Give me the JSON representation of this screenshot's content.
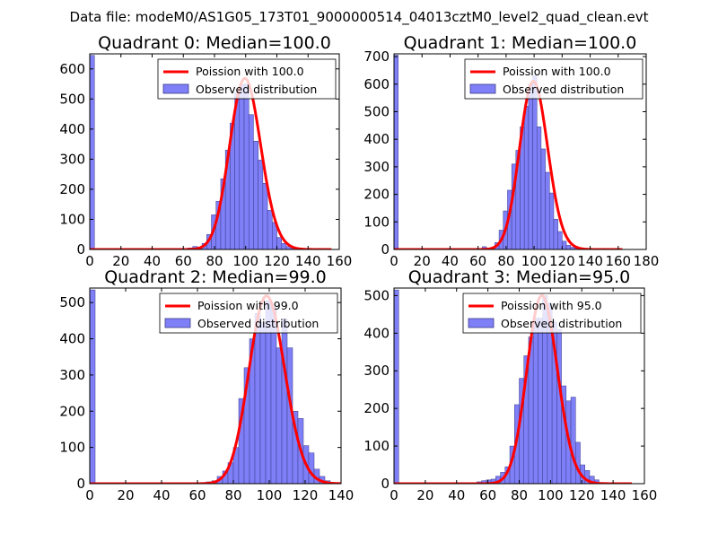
{
  "figure_title": "Data file: modeM0/AS1G05_173T01_9000000514_04013cztM0_level2_quad_clean.evt",
  "colors": {
    "bar_fill": "#7f7ff7",
    "bar_edge": "#3b3b8a",
    "fit_line": "#ff0000",
    "axes": "#000000"
  },
  "chart_data": [
    {
      "type": "bar",
      "title": "Quadrant 0: Median=100.0",
      "xlim": [
        0,
        160
      ],
      "ylim": [
        0,
        650
      ],
      "xticks": [
        0,
        20,
        40,
        60,
        80,
        100,
        120,
        140,
        160
      ],
      "yticks": [
        0,
        100,
        200,
        300,
        400,
        500,
        600
      ],
      "legend": {
        "position": "top-right",
        "line_label": "Poission with 100.0",
        "bar_label": "Observed distribution"
      },
      "fit": {
        "mu": 100.0,
        "x_range": [
          0,
          155
        ],
        "peak": 568
      },
      "bar_width": 3,
      "bars": [
        [
          0,
          645
        ],
        [
          63,
          5
        ],
        [
          66,
          10
        ],
        [
          69,
          8
        ],
        [
          72,
          20
        ],
        [
          75,
          50
        ],
        [
          78,
          115
        ],
        [
          81,
          160
        ],
        [
          84,
          235
        ],
        [
          87,
          330
        ],
        [
          90,
          420
        ],
        [
          93,
          520
        ],
        [
          96,
          548
        ],
        [
          99,
          550
        ],
        [
          102,
          448
        ],
        [
          105,
          360
        ],
        [
          108,
          297
        ],
        [
          111,
          220
        ],
        [
          114,
          130
        ],
        [
          117,
          90
        ],
        [
          120,
          40
        ],
        [
          123,
          20
        ],
        [
          126,
          10
        ],
        [
          129,
          5
        ]
      ]
    },
    {
      "type": "bar",
      "title": "Quadrant 1: Median=100.0",
      "xlim": [
        0,
        180
      ],
      "ylim": [
        0,
        710
      ],
      "xticks": [
        0,
        20,
        40,
        60,
        80,
        100,
        120,
        140,
        160,
        180
      ],
      "yticks": [
        0,
        100,
        200,
        300,
        400,
        500,
        600,
        700
      ],
      "legend": {
        "position": "top-right",
        "line_label": "Poission with 100.0",
        "bar_label": "Observed distribution"
      },
      "fit": {
        "mu": 100.0,
        "x_range": [
          0,
          163
        ],
        "peak": 610
      },
      "bar_width": 3,
      "bars": [
        [
          0,
          705
        ],
        [
          63,
          10
        ],
        [
          69,
          5
        ],
        [
          72,
          25
        ],
        [
          75,
          70
        ],
        [
          78,
          140
        ],
        [
          81,
          215
        ],
        [
          84,
          310
        ],
        [
          87,
          360
        ],
        [
          90,
          445
        ],
        [
          93,
          520
        ],
        [
          96,
          600
        ],
        [
          99,
          630
        ],
        [
          102,
          445
        ],
        [
          105,
          365
        ],
        [
          108,
          280
        ],
        [
          111,
          205
        ],
        [
          114,
          110
        ],
        [
          117,
          65
        ],
        [
          120,
          30
        ],
        [
          123,
          15
        ],
        [
          126,
          8
        ],
        [
          129,
          5
        ]
      ]
    },
    {
      "type": "bar",
      "title": "Quadrant 2: Median=99.0",
      "xlim": [
        0,
        140
      ],
      "ylim": [
        0,
        540
      ],
      "xticks": [
        0,
        20,
        40,
        60,
        80,
        100,
        120,
        140
      ],
      "yticks": [
        0,
        100,
        200,
        300,
        400,
        500
      ],
      "legend": {
        "position": "top-right",
        "line_label": "Poission with 99.0",
        "bar_label": "Observed distribution"
      },
      "fit": {
        "mu": 99.0,
        "x_range": [
          0,
          140
        ],
        "peak": 518
      },
      "bar_width": 3,
      "bars": [
        [
          0,
          535
        ],
        [
          65,
          5
        ],
        [
          68,
          8
        ],
        [
          71,
          20
        ],
        [
          74,
          35
        ],
        [
          77,
          58
        ],
        [
          80,
          100
        ],
        [
          83,
          235
        ],
        [
          86,
          320
        ],
        [
          89,
          400
        ],
        [
          92,
          470
        ],
        [
          95,
          445
        ],
        [
          98,
          505
        ],
        [
          101,
          490
        ],
        [
          104,
          375
        ],
        [
          107,
          455
        ],
        [
          110,
          375
        ],
        [
          113,
          200
        ],
        [
          116,
          180
        ],
        [
          119,
          105
        ],
        [
          122,
          85
        ],
        [
          125,
          40
        ],
        [
          128,
          20
        ],
        [
          131,
          8
        ]
      ]
    },
    {
      "type": "bar",
      "title": "Quadrant 3: Median=95.0",
      "xlim": [
        0,
        160
      ],
      "ylim": [
        0,
        520
      ],
      "xticks": [
        0,
        20,
        40,
        60,
        80,
        100,
        120,
        140,
        160
      ],
      "yticks": [
        0,
        100,
        200,
        300,
        400,
        500
      ],
      "legend": {
        "position": "top-right",
        "line_label": "Poission with 95.0",
        "bar_label": "Observed distribution"
      },
      "fit": {
        "mu": 95.0,
        "x_range": [
          0,
          152
        ],
        "peak": 500
      },
      "bar_width": 3,
      "bars": [
        [
          0,
          515
        ],
        [
          50,
          3
        ],
        [
          53,
          5
        ],
        [
          56,
          8
        ],
        [
          59,
          10
        ],
        [
          62,
          12
        ],
        [
          65,
          20
        ],
        [
          68,
          30
        ],
        [
          71,
          45
        ],
        [
          74,
          100
        ],
        [
          77,
          210
        ],
        [
          80,
          280
        ],
        [
          83,
          340
        ],
        [
          86,
          390
        ],
        [
          89,
          440
        ],
        [
          92,
          440
        ],
        [
          95,
          500
        ],
        [
          98,
          480
        ],
        [
          101,
          430
        ],
        [
          104,
          410
        ],
        [
          107,
          260
        ],
        [
          110,
          220
        ],
        [
          113,
          230
        ],
        [
          116,
          110
        ],
        [
          119,
          50
        ],
        [
          122,
          35
        ],
        [
          125,
          20
        ],
        [
          128,
          10
        ]
      ]
    }
  ]
}
